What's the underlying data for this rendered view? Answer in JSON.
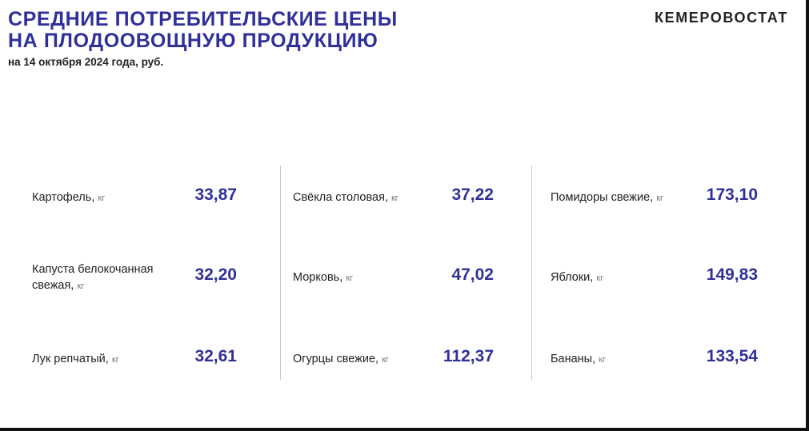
{
  "header": {
    "title_line1": "СРЕДНИЕ ПОТРЕБИТЕЛЬСКИЕ ЦЕНЫ",
    "title_line2": "НА ПЛОДООВОЩНУЮ ПРОДУКЦИЮ",
    "subtitle": "на 14 октября 2024 года, руб.",
    "brand": "КЕМЕРОВОСТАТ"
  },
  "colors": {
    "accent": "#30309a",
    "text": "#222222",
    "unit": "#777777"
  },
  "items": [
    {
      "name": "Картофель,",
      "unit": "кг",
      "price": "33,87"
    },
    {
      "name": "Капуста белокочанная свежая,",
      "unit": "кг",
      "price": "32,20"
    },
    {
      "name": "Лук репчатый,",
      "unit": "кг",
      "price": "32,61"
    },
    {
      "name": "Свёкла столовая,",
      "unit": "кг",
      "price": "37,22"
    },
    {
      "name": "Морковь,",
      "unit": "кг",
      "price": "47,02"
    },
    {
      "name": "Огурцы свежие,",
      "unit": "кг",
      "price": "112,37"
    },
    {
      "name": "Помидоры свежие,",
      "unit": "кг",
      "price": "173,10"
    },
    {
      "name": "Яблоки,",
      "unit": "кг",
      "price": "149,83"
    },
    {
      "name": "Бананы,",
      "unit": "кг",
      "price": "133,54"
    }
  ]
}
